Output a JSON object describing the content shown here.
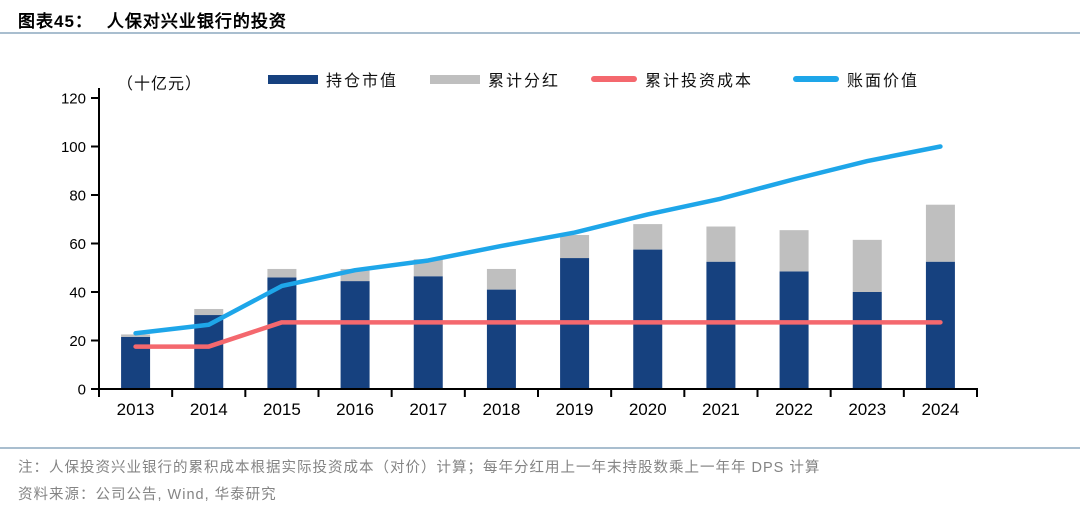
{
  "header": {
    "figure_label": "图表45：",
    "title": "人保对兴业银行的投资"
  },
  "chart_data": {
    "type": "bar+line",
    "title": "人保对兴业银行的投资",
    "unit_label": "（十亿元）",
    "categories": [
      "2013",
      "2014",
      "2015",
      "2016",
      "2017",
      "2018",
      "2019",
      "2020",
      "2021",
      "2022",
      "2023",
      "2024"
    ],
    "yticks": [
      0,
      20,
      40,
      60,
      80,
      100,
      120
    ],
    "ylim": [
      0,
      120
    ],
    "grid": false,
    "legend_position": "top",
    "series": [
      {
        "name": "持仓市值",
        "type": "bar",
        "stacked": true,
        "color": "#16417f",
        "values": [
          21.5,
          30.5,
          46,
          44.5,
          46.5,
          41,
          54,
          57.5,
          52.5,
          48.5,
          40,
          52.5
        ]
      },
      {
        "name": "累计分红",
        "type": "bar",
        "stacked": true,
        "color": "#bfbfbf",
        "values": [
          1,
          2.5,
          3.5,
          5,
          7,
          8.5,
          9.5,
          10.5,
          14.5,
          17,
          21.5,
          23.5
        ]
      },
      {
        "name": "累计投资成本",
        "type": "line",
        "color": "#f4686e",
        "values": [
          17.5,
          17.5,
          27.5,
          27.5,
          27.5,
          27.5,
          27.5,
          27.5,
          27.5,
          27.5,
          27.5,
          27.5
        ]
      },
      {
        "name": "账面价值",
        "type": "line",
        "color": "#1ea6e9",
        "values": [
          23,
          26.5,
          42.5,
          49,
          53,
          59,
          64.5,
          72,
          78.5,
          86.5,
          94,
          100
        ]
      }
    ]
  },
  "footer": {
    "note": "注：人保投资兴业银行的累积成本根据实际投资成本（对价）计算；每年分红用上一年末持股数乘上一年年 DPS 计算",
    "source": "资料来源：公司公告, Wind, 华泰研究"
  }
}
